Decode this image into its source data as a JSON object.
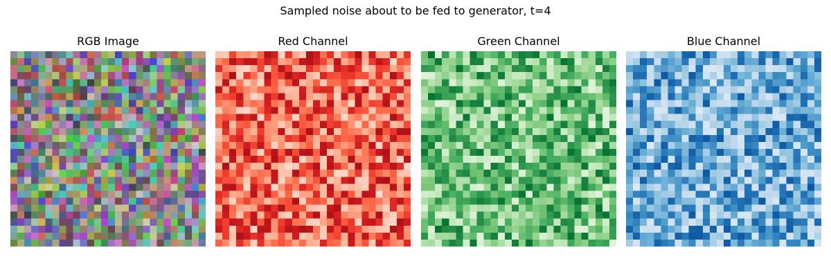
{
  "figure": {
    "suptitle": "Sampled noise about to be fed to generator, t=4"
  },
  "chart_data": [
    {
      "type": "heatmap",
      "title": "RGB Image",
      "colormap": "rgb",
      "rows": 28,
      "cols": 28,
      "axes": "off",
      "value_range": [
        0,
        1
      ],
      "seed": 11
    },
    {
      "type": "heatmap",
      "title": "Red Channel",
      "colormap": "Reds",
      "rows": 28,
      "cols": 28,
      "axes": "off",
      "value_range": [
        0,
        1
      ],
      "seed": 23
    },
    {
      "type": "heatmap",
      "title": "Green Channel",
      "colormap": "Greens",
      "rows": 28,
      "cols": 28,
      "axes": "off",
      "value_range": [
        0,
        1
      ],
      "seed": 37
    },
    {
      "type": "heatmap",
      "title": "Blue Channel",
      "colormap": "Blues",
      "rows": 28,
      "cols": 28,
      "axes": "off",
      "value_range": [
        0,
        1
      ],
      "seed": 51
    }
  ],
  "colormaps": {
    "Reds": [
      "#fff5f0",
      "#fee0d2",
      "#fcbba1",
      "#fc9272",
      "#fb6a4a",
      "#ef3b2c",
      "#cb181d",
      "#a50f15",
      "#67000d"
    ],
    "Greens": [
      "#f7fcf5",
      "#e5f5e0",
      "#c7e9c0",
      "#a1d99b",
      "#74c476",
      "#41ab5d",
      "#238b45",
      "#006d2c",
      "#00441b"
    ],
    "Blues": [
      "#f7fbff",
      "#deebf7",
      "#c6dbef",
      "#9ecae1",
      "#6baed6",
      "#4292c6",
      "#2171b5",
      "#08519c",
      "#08306b"
    ]
  }
}
